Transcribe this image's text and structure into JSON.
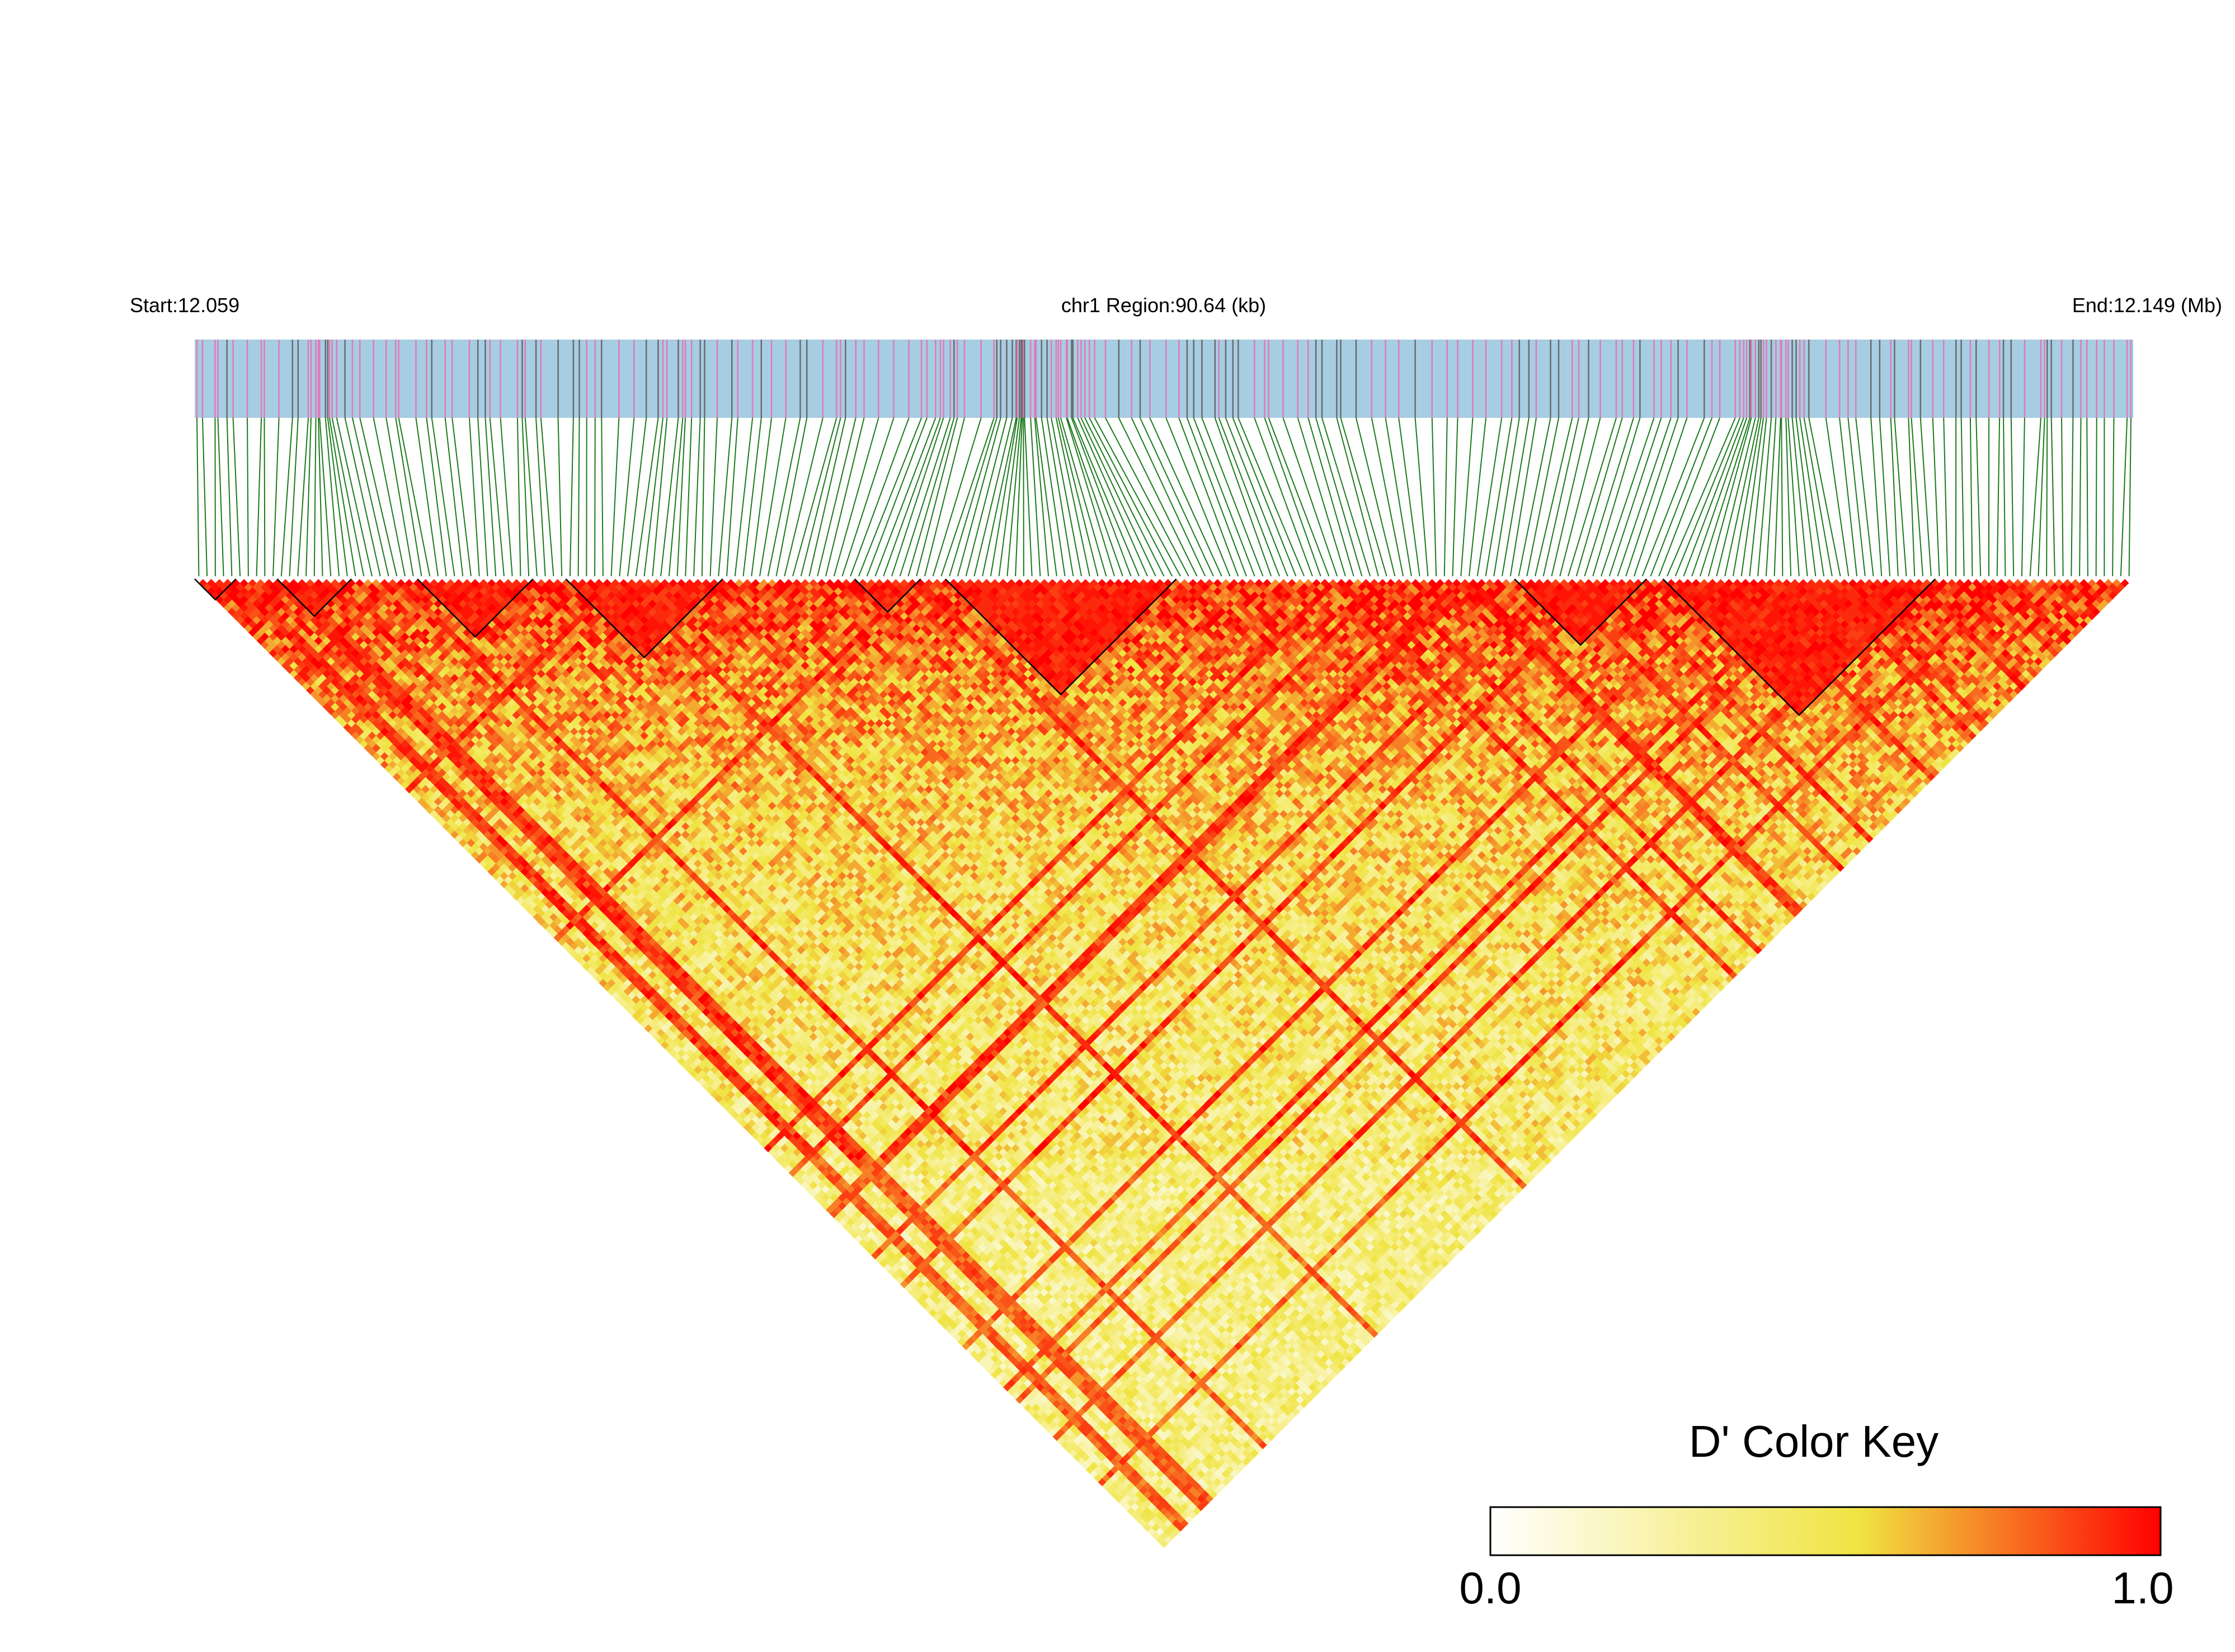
{
  "header": {
    "start_label": "Start:12.059",
    "region_label": "chr1 Region:90.64 (kb)",
    "end_label": "End:12.149 (Mb)"
  },
  "legend": {
    "title": "D' Color Key",
    "min_label": "0.0",
    "max_label": "1.0",
    "gradient_stops": [
      "#ffffff",
      "#f0e442",
      "#ff0000"
    ]
  },
  "colors": {
    "track_background": "#a6cde2",
    "snp_mark_primary": "#e07ab8",
    "snp_mark_secondary": "#6b6b6b",
    "connector_lines": "#1a7a1a",
    "block_outline": "#000000"
  },
  "chart_data": {
    "type": "heatmap",
    "description": "LD (D') heatmap triangle for ~235 SNPs in chr1 region 12.059–12.149 Mb",
    "chromosome": "chr1",
    "region_start_mb": 12.059,
    "region_end_mb": 12.149,
    "region_size_kb": 90.64,
    "snp_count": 235,
    "value_range": [
      0.0,
      1.0
    ],
    "high_ld_blocks_snp_index": [
      [
        0,
        4
      ],
      [
        10,
        18
      ],
      [
        27,
        40
      ],
      [
        45,
        63
      ],
      [
        80,
        87
      ],
      [
        91,
        118
      ],
      [
        160,
        175
      ],
      [
        178,
        210
      ]
    ]
  }
}
